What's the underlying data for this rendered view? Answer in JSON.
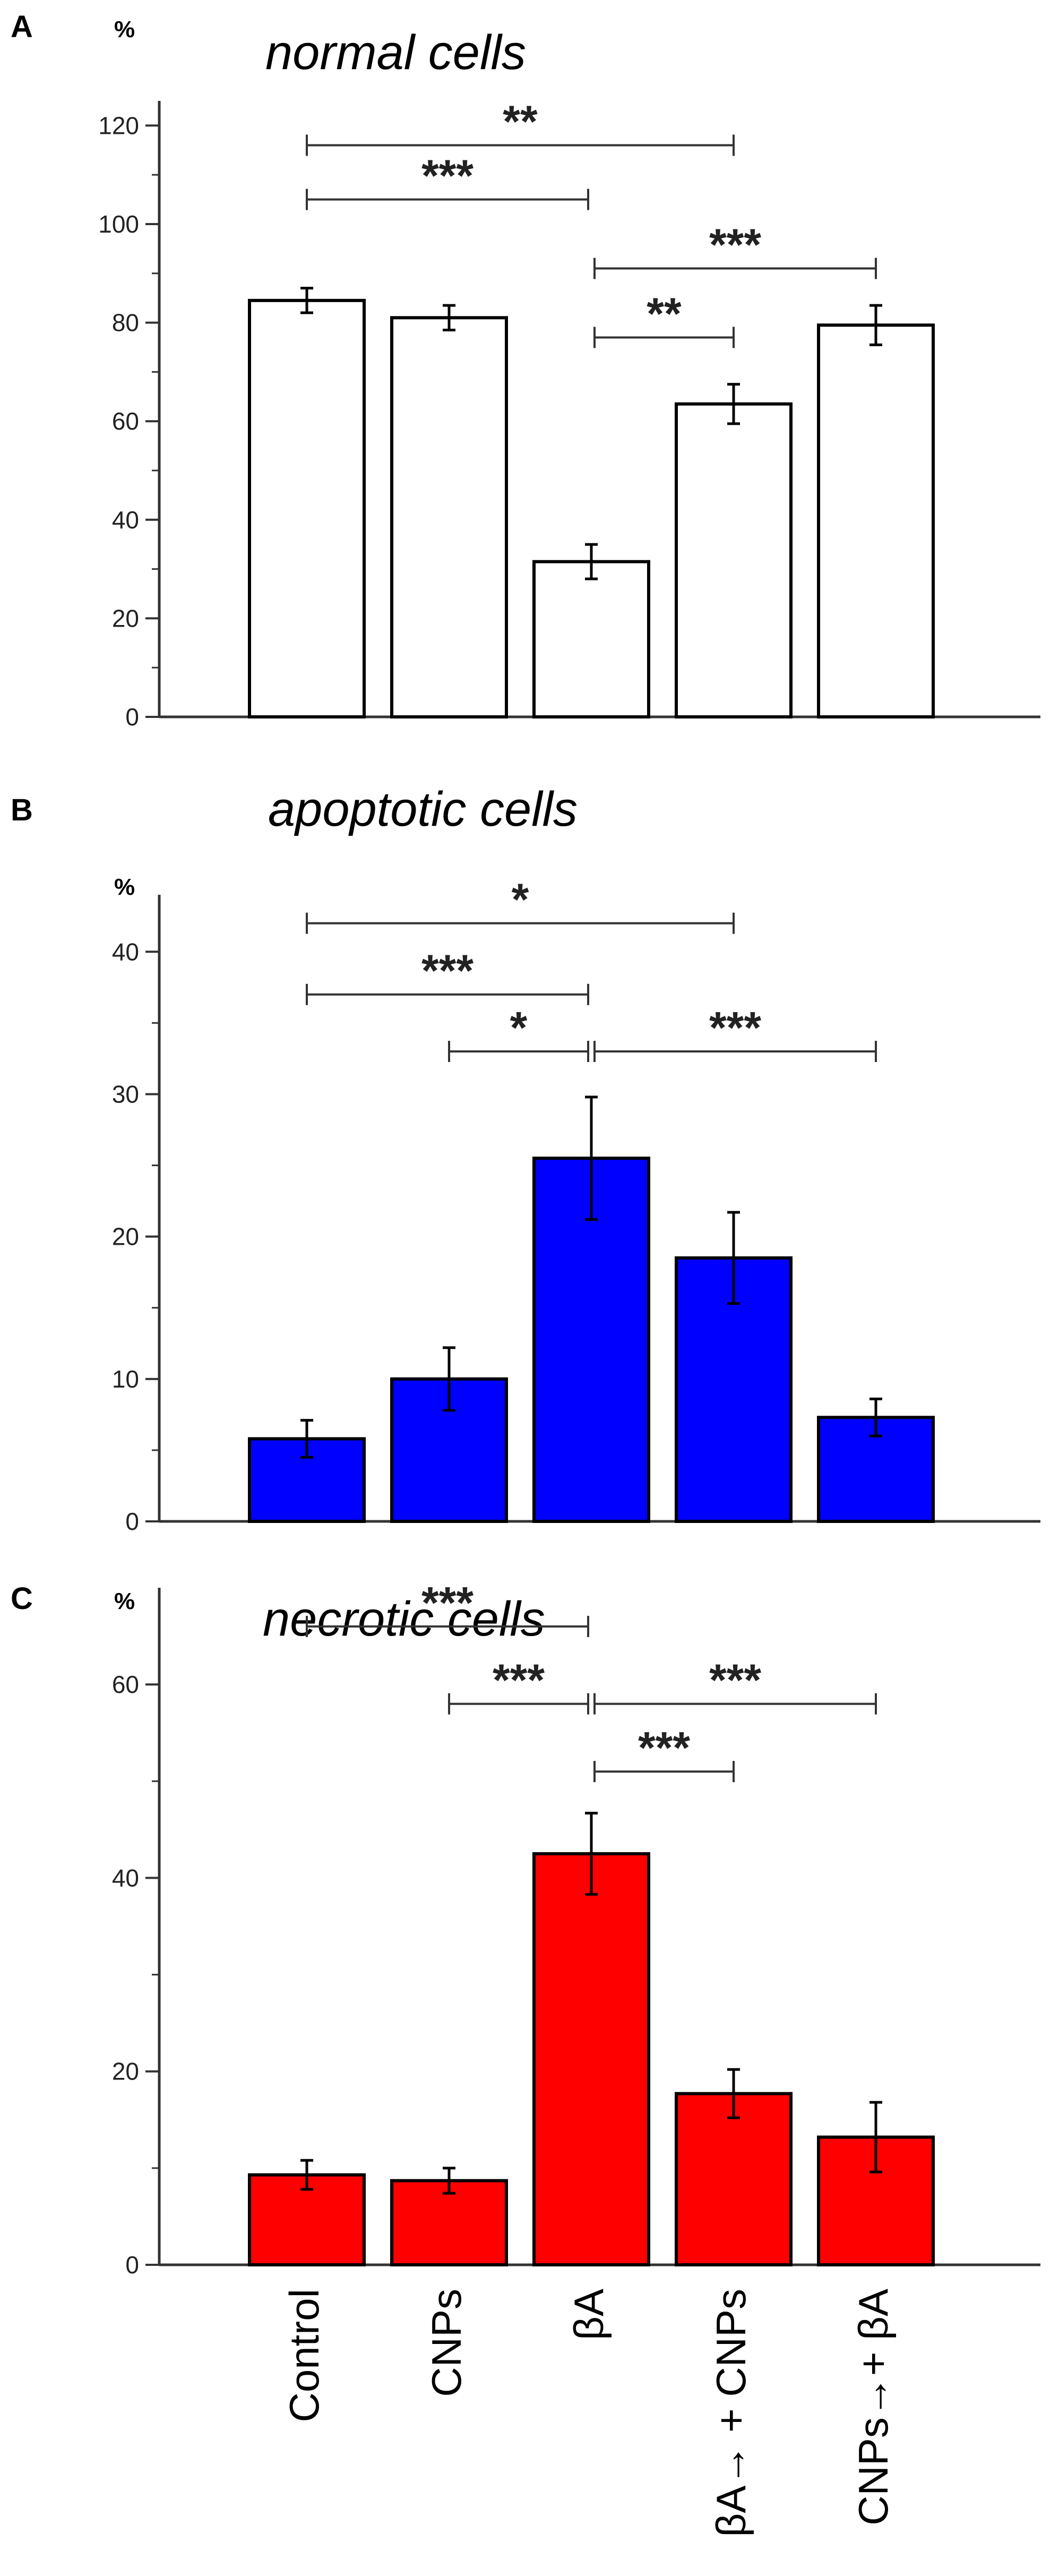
{
  "figure": {
    "category_labels": [
      "Control",
      "CNPs",
      "βA",
      "βA→ + CNPs",
      "CNPs→+ βA"
    ]
  },
  "chart_data": [
    {
      "panel_letter": "A",
      "type": "bar",
      "title": "normal cells",
      "ylabel": "%",
      "ylim": [
        0,
        125
      ],
      "yticks": [
        0,
        20,
        40,
        60,
        80,
        100,
        120
      ],
      "bar_fill": "#ffffff",
      "series": [
        {
          "name": "normal cells",
          "values": [
            84.5,
            81,
            31.5,
            63.5,
            79.5
          ],
          "errors": [
            2.5,
            2.5,
            3.5,
            4,
            4
          ]
        }
      ],
      "significance": [
        {
          "from": 0,
          "to": 3,
          "label": "**",
          "y": 116
        },
        {
          "from": 0,
          "to": 2,
          "label": "***",
          "y": 105
        },
        {
          "from": 2,
          "to": 4,
          "label": "***",
          "y": 91
        },
        {
          "from": 2,
          "to": 3,
          "label": "**",
          "y": 77
        }
      ]
    },
    {
      "panel_letter": "B",
      "type": "bar",
      "title": "apoptotic cells",
      "ylabel": "%",
      "ylim": [
        0,
        44
      ],
      "yticks": [
        0,
        10,
        20,
        30,
        40
      ],
      "bar_fill": "#0000ff",
      "series": [
        {
          "name": "apoptotic cells",
          "values": [
            5.8,
            10,
            25.5,
            18.5,
            7.3
          ],
          "errors": [
            1.3,
            2.2,
            4.3,
            3.2,
            1.3
          ]
        }
      ],
      "significance": [
        {
          "from": 0,
          "to": 3,
          "label": "*",
          "y": 42
        },
        {
          "from": 0,
          "to": 2,
          "label": "***",
          "y": 37
        },
        {
          "from": 1,
          "to": 2,
          "label": "*",
          "y": 33
        },
        {
          "from": 2,
          "to": 4,
          "label": "***",
          "y": 33
        }
      ]
    },
    {
      "panel_letter": "C",
      "type": "bar",
      "title": "necrotic cells",
      "ylabel": "%",
      "ylim": [
        0,
        70
      ],
      "yticks": [
        0,
        20,
        40,
        60
      ],
      "bar_fill": "#ff0000",
      "series": [
        {
          "name": "necrotic cells",
          "values": [
            9.3,
            8.7,
            42.5,
            17.7,
            13.2
          ],
          "errors": [
            1.5,
            1.3,
            4.2,
            2.5,
            3.6
          ]
        }
      ],
      "significance": [
        {
          "from": 0,
          "to": 2,
          "label": "***",
          "y": 66
        },
        {
          "from": 1,
          "to": 2,
          "label": "***",
          "y": 58
        },
        {
          "from": 2,
          "to": 4,
          "label": "***",
          "y": 58
        },
        {
          "from": 2,
          "to": 3,
          "label": "***",
          "y": 51
        }
      ]
    }
  ]
}
